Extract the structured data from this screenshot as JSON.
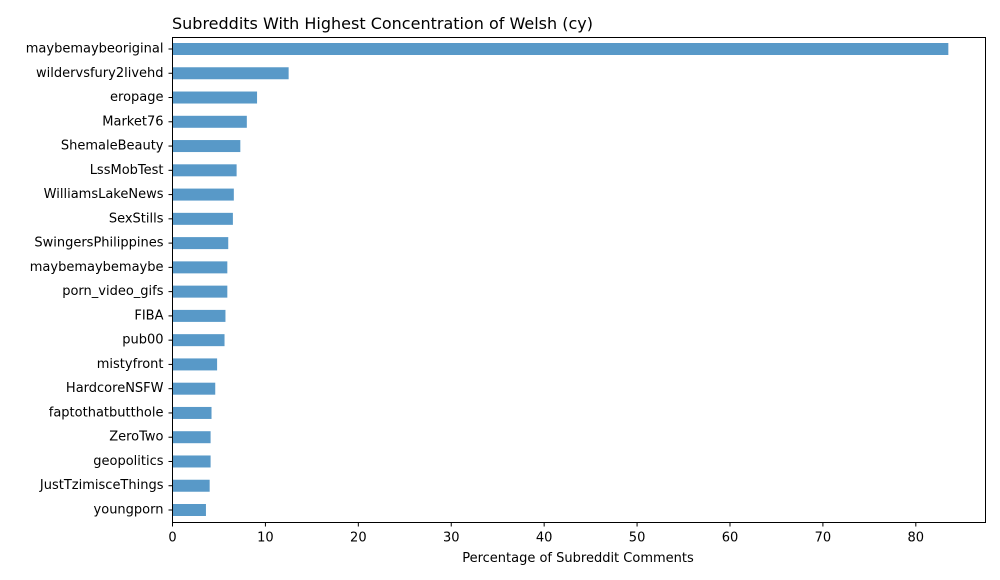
{
  "chart_data": {
    "type": "bar",
    "orientation": "horizontal",
    "title": "Subreddits With Highest Concentration of Welsh (cy)",
    "xlabel": "Percentage of Subreddit Comments",
    "ylabel": "",
    "xlim": [
      0,
      87.5
    ],
    "xticks": [
      0,
      10,
      20,
      30,
      40,
      50,
      60,
      70,
      80
    ],
    "grid": false,
    "bar_color": "#5899c8",
    "categories": [
      "maybemaybeoriginal",
      "wildervsfury2livehd",
      "eropage",
      "Market76",
      "ShemaleBeauty",
      "LssMobTest",
      "WilliamsLakeNews",
      "SexStills",
      "SwingersPhilippines",
      "maybemaybemaybe",
      "porn_video_gifs",
      "FIBA",
      "pub00",
      "mistyfront",
      "HardcoreNSFW",
      "faptothatbutthole",
      "ZeroTwo",
      "geopolitics",
      "JustTzimisceThings",
      "youngporn"
    ],
    "values": [
      83.5,
      12.5,
      9.1,
      8.0,
      7.3,
      6.9,
      6.6,
      6.5,
      6.0,
      5.9,
      5.9,
      5.7,
      5.6,
      4.8,
      4.6,
      4.2,
      4.1,
      4.1,
      4.0,
      3.6
    ]
  }
}
